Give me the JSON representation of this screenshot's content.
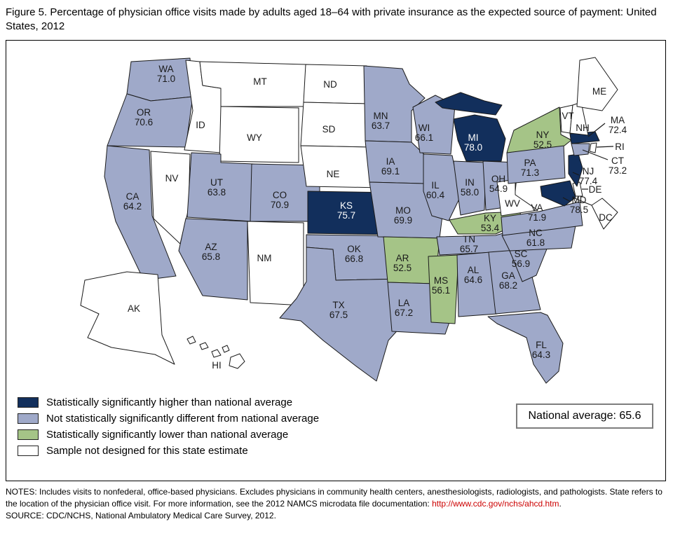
{
  "title": "Figure 5. Percentage of physician office visits made by adults aged 18–64 with private insurance as the expected source of payment: United States, 2012",
  "colors": {
    "higher": "#122f5c",
    "not_different": "#9fa9c9",
    "lower": "#a5c487",
    "not_designed": "#ffffff",
    "border": "#1a1a1a",
    "label_dark": "#1a1a1a",
    "label_light": "#ffffff",
    "link": "#cc0000"
  },
  "legend": [
    {
      "category": "higher",
      "label": "Statistically significantly higher than national average"
    },
    {
      "category": "not_different",
      "label": "Not statistically significantly different from national average"
    },
    {
      "category": "lower",
      "label": "Statistically significantly lower than national average"
    },
    {
      "category": "not_designed",
      "label": "Sample not designed for this state estimate"
    }
  ],
  "national_average_label": "National average: 65.6",
  "notes": {
    "prefix": "NOTES: Includes visits to nonfederal, office-based physicians. Excludes physicians in community health centers, anesthesiologists, radiologists, and pathologists. State refers to the location of the physician office visit. For more information, see the 2012 NAMCS microdata file documentation: ",
    "link_text": "http://www.cdc.gov/nchs/ahcd.htm",
    "suffix": ".",
    "source": "SOURCE: CDC/NCHS, National Ambulatory Medical Care Survey, 2012."
  },
  "chart_data": {
    "type": "choropleth_map",
    "title": "Percentage of physician office visits made by adults aged 18–64 with private insurance as the expected source of payment: United States, 2012",
    "unit": "percent",
    "national_average": 65.6,
    "category_meanings": {
      "higher": "Statistically significantly higher than national average",
      "not_different": "Not statistically significantly different from national average",
      "lower": "Statistically significantly lower than national average",
      "not_designed": "Sample not designed for this state estimate"
    },
    "states": [
      {
        "code": "WA",
        "value": 71.0,
        "category": "not_different"
      },
      {
        "code": "OR",
        "value": 70.6,
        "category": "not_different"
      },
      {
        "code": "CA",
        "value": 64.2,
        "category": "not_different"
      },
      {
        "code": "NV",
        "value": null,
        "category": "not_designed"
      },
      {
        "code": "ID",
        "value": null,
        "category": "not_designed"
      },
      {
        "code": "MT",
        "value": null,
        "category": "not_designed"
      },
      {
        "code": "WY",
        "value": null,
        "category": "not_designed"
      },
      {
        "code": "UT",
        "value": 63.8,
        "category": "not_different"
      },
      {
        "code": "CO",
        "value": 70.9,
        "category": "not_different"
      },
      {
        "code": "AZ",
        "value": 65.8,
        "category": "not_different"
      },
      {
        "code": "NM",
        "value": null,
        "category": "not_designed"
      },
      {
        "code": "ND",
        "value": null,
        "category": "not_designed"
      },
      {
        "code": "SD",
        "value": null,
        "category": "not_designed"
      },
      {
        "code": "NE",
        "value": null,
        "category": "not_designed"
      },
      {
        "code": "KS",
        "value": 75.7,
        "category": "higher"
      },
      {
        "code": "OK",
        "value": 66.8,
        "category": "not_different"
      },
      {
        "code": "TX",
        "value": 67.5,
        "category": "not_different"
      },
      {
        "code": "MN",
        "value": 63.7,
        "category": "not_different"
      },
      {
        "code": "IA",
        "value": 69.1,
        "category": "not_different"
      },
      {
        "code": "MO",
        "value": 69.9,
        "category": "not_different"
      },
      {
        "code": "AR",
        "value": 52.5,
        "category": "lower"
      },
      {
        "code": "LA",
        "value": 67.2,
        "category": "not_different"
      },
      {
        "code": "WI",
        "value": 66.1,
        "category": "not_different"
      },
      {
        "code": "IL",
        "value": 60.4,
        "category": "not_different"
      },
      {
        "code": "IN",
        "value": 58.0,
        "category": "not_different"
      },
      {
        "code": "MI",
        "value": 78.0,
        "category": "higher"
      },
      {
        "code": "OH",
        "value": 54.9,
        "category": "not_different"
      },
      {
        "code": "KY",
        "value": 53.4,
        "category": "lower"
      },
      {
        "code": "TN",
        "value": 65.7,
        "category": "not_different"
      },
      {
        "code": "MS",
        "value": 56.1,
        "category": "lower"
      },
      {
        "code": "AL",
        "value": 64.6,
        "category": "not_different"
      },
      {
        "code": "GA",
        "value": 68.2,
        "category": "not_different"
      },
      {
        "code": "FL",
        "value": 64.3,
        "category": "not_different"
      },
      {
        "code": "SC",
        "value": 56.9,
        "category": "not_different"
      },
      {
        "code": "NC",
        "value": 61.8,
        "category": "not_different"
      },
      {
        "code": "VA",
        "value": 71.9,
        "category": "not_different"
      },
      {
        "code": "WV",
        "value": null,
        "category": "not_designed"
      },
      {
        "code": "MD",
        "value": 78.5,
        "category": "higher"
      },
      {
        "code": "DE",
        "value": null,
        "category": "not_designed"
      },
      {
        "code": "PA",
        "value": 71.3,
        "category": "not_different"
      },
      {
        "code": "NJ",
        "value": 77.4,
        "category": "higher"
      },
      {
        "code": "NY",
        "value": 52.5,
        "category": "lower"
      },
      {
        "code": "CT",
        "value": 73.2,
        "category": "not_different"
      },
      {
        "code": "RI",
        "value": null,
        "category": "not_designed"
      },
      {
        "code": "MA",
        "value": 72.4,
        "category": "higher"
      },
      {
        "code": "VT",
        "value": null,
        "category": "not_designed"
      },
      {
        "code": "NH",
        "value": null,
        "category": "not_designed"
      },
      {
        "code": "ME",
        "value": null,
        "category": "not_designed"
      },
      {
        "code": "DC",
        "value": null,
        "category": "not_designed"
      },
      {
        "code": "AK",
        "value": null,
        "category": "not_designed"
      },
      {
        "code": "HI",
        "value": null,
        "category": "not_designed"
      }
    ]
  }
}
